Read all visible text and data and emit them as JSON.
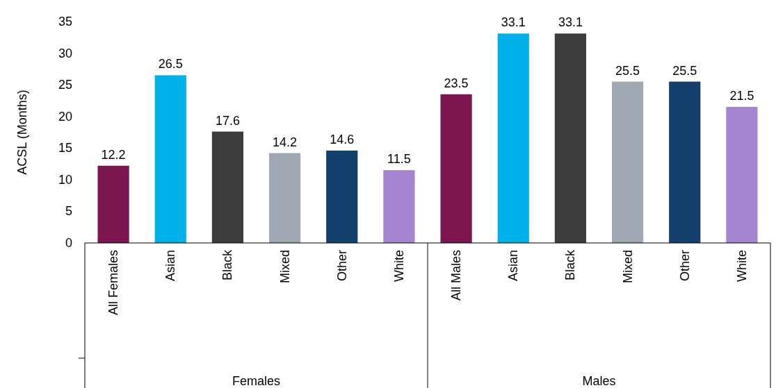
{
  "chart_data": {
    "type": "bar",
    "ylabel": "ACSL (Months)",
    "categories": [
      "All Females",
      "Asian",
      "Black",
      "Mixed",
      "Other",
      "White",
      "All Males",
      "Asian",
      "Black",
      "Mixed",
      "Other",
      "White"
    ],
    "values": [
      12.2,
      26.5,
      17.6,
      14.2,
      14.6,
      11.5,
      23.5,
      33.1,
      33.1,
      25.5,
      25.5,
      21.5
    ],
    "colors": [
      "#7b1650",
      "#00b0e8",
      "#3c3c3c",
      "#a0a8b4",
      "#123f6b",
      "#a385d0",
      "#7b1650",
      "#00b0e8",
      "#3c3c3c",
      "#a0a8b4",
      "#123f6b",
      "#a385d0"
    ],
    "ylim": [
      0,
      35
    ],
    "yticks": [
      0,
      5,
      10,
      15,
      20,
      25,
      30,
      35
    ],
    "data_labels": true,
    "annotations": [
      "Females",
      "Males"
    ]
  }
}
